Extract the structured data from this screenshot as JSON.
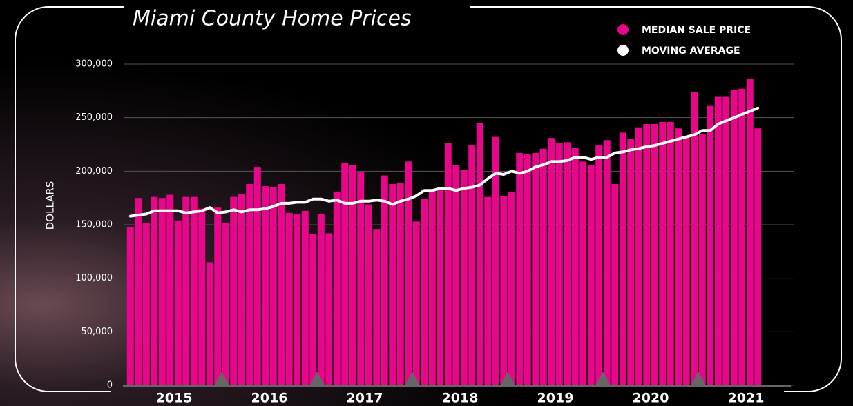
{
  "chart_data": {
    "type": "bar",
    "title": "Miami County Home Prices",
    "y_label": "DOLLARS",
    "categories": [
      null,
      null,
      null,
      null,
      null,
      null,
      "2015",
      null,
      null,
      null,
      null,
      null,
      null,
      null,
      null,
      null,
      null,
      null,
      "2016",
      null,
      null,
      null,
      null,
      null,
      null,
      null,
      null,
      null,
      null,
      null,
      "2017",
      null,
      null,
      null,
      null,
      null,
      null,
      null,
      null,
      null,
      null,
      null,
      "2018",
      null,
      null,
      null,
      null,
      null,
      null,
      null,
      null,
      null,
      null,
      null,
      "2019",
      null,
      null,
      null,
      null,
      null,
      null,
      null,
      null,
      null,
      null,
      null,
      "2020",
      null,
      null,
      null,
      null,
      null,
      null,
      null,
      null,
      null,
      null,
      null,
      "2021",
      null
    ],
    "series": [
      {
        "name": "MEDIAN SALE PRICE",
        "color": "#e8078a",
        "type": "bar",
        "values": [
          148000,
          175000,
          152000,
          176000,
          175000,
          178000,
          154000,
          176000,
          176000,
          165000,
          115000,
          166000,
          152000,
          176000,
          179000,
          188000,
          204000,
          186000,
          185000,
          188000,
          161000,
          160000,
          163000,
          141000,
          160000,
          142000,
          181000,
          208000,
          206000,
          199000,
          169000,
          146000,
          196000,
          188000,
          189000,
          209000,
          153000,
          174000,
          183000,
          185000,
          226000,
          206000,
          201000,
          224000,
          245000,
          176000,
          232000,
          177000,
          181000,
          217000,
          216000,
          217000,
          221000,
          231000,
          226000,
          227000,
          222000,
          209000,
          206000,
          224000,
          229000,
          188000,
          236000,
          230000,
          241000,
          244000,
          244000,
          246000,
          246000,
          240000,
          232000,
          274000,
          235000,
          261000,
          270000,
          270000,
          276000,
          277000,
          286000,
          240000
        ]
      },
      {
        "name": "MOVING AVERAGE",
        "color": "#ffffff",
        "type": "line",
        "values": [
          158000,
          159000,
          160000,
          163000,
          163000,
          163000,
          163000,
          161000,
          162000,
          163000,
          166000,
          161000,
          162000,
          164000,
          162000,
          164000,
          164000,
          165000,
          167000,
          170000,
          170000,
          171000,
          171000,
          174000,
          174000,
          172000,
          173000,
          170000,
          170000,
          172000,
          172000,
          173000,
          172000,
          169000,
          172000,
          174000,
          177000,
          182000,
          182000,
          184000,
          184000,
          182000,
          184000,
          185000,
          187000,
          193000,
          198000,
          197000,
          200000,
          198000,
          200000,
          204000,
          206000,
          209000,
          209000,
          210000,
          213000,
          213000,
          211000,
          213000,
          213000,
          217000,
          218000,
          220000,
          221000,
          223000,
          224000,
          226000,
          228000,
          230000,
          232000,
          234000,
          238000,
          238000,
          244000,
          247000,
          250000,
          253000,
          256000,
          259000
        ]
      }
    ],
    "ylim": [
      0,
      300000
    ],
    "yticks": [
      0,
      {
        "value": 50000,
        "label": "50,000"
      },
      {
        "value": 100000,
        "label": "100,000"
      },
      {
        "value": 150000,
        "label": "150,000"
      },
      {
        "value": 200000,
        "label": "200,000"
      },
      {
        "value": 250000,
        "label": "250,000"
      },
      {
        "value": 300000,
        "label": "300,000"
      }
    ],
    "grid": true
  }
}
